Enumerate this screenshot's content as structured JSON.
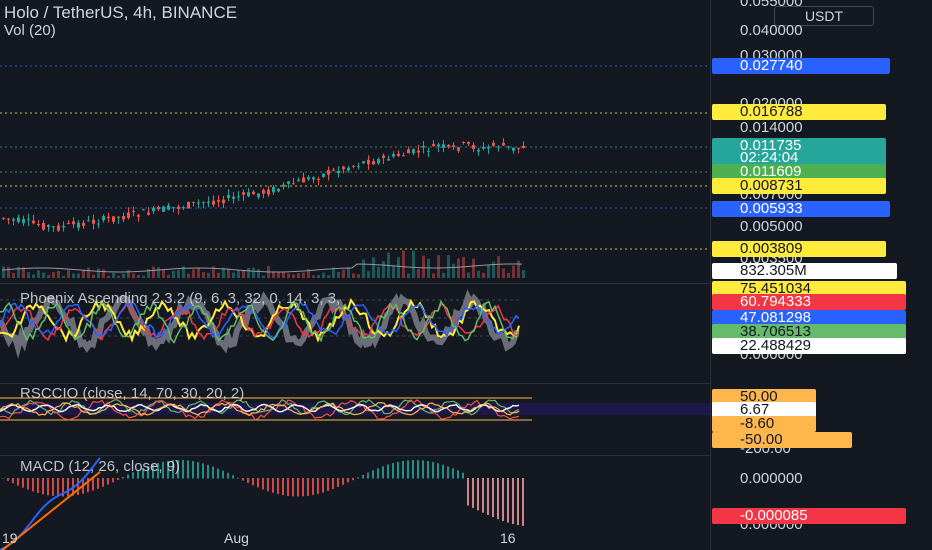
{
  "header": {
    "title": "Holo / TetherUS, 4h, BINANCE",
    "volume_label": "Vol (20)",
    "currency": "USDT"
  },
  "price_axis": {
    "ticks": [
      "0.055000",
      "0.040000",
      "0.030000",
      "0.020000",
      "0.014000",
      "0.007000",
      "0.005000",
      "0.003500"
    ],
    "labels": [
      {
        "text": "0.027740",
        "bg": "#2962ff",
        "fg": "#ffffff"
      },
      {
        "text": "0.016788",
        "bg": "#ffeb3b",
        "fg": "#131722"
      },
      {
        "text": "0.011735",
        "bg": "#26a69a",
        "fg": "#ffffff"
      },
      {
        "text": "02:24:04",
        "bg": "#26a69a",
        "fg": "#ffffff"
      },
      {
        "text": "0.011609",
        "bg": "#4caf50",
        "fg": "#ffffff"
      },
      {
        "text": "0.008731",
        "bg": "#ffeb3b",
        "fg": "#131722"
      },
      {
        "text": "0.005933",
        "bg": "#2962ff",
        "fg": "#ffffff"
      },
      {
        "text": "0.003809",
        "bg": "#ffeb3b",
        "fg": "#131722"
      },
      {
        "text": "832.305M",
        "bg": "#ffffff",
        "fg": "#131722"
      }
    ]
  },
  "phoenix": {
    "title": "Phoenix Ascending 2.3.2 (9, 6, 3, 32, 0, 14, 3, 3,",
    "labels": [
      {
        "text": "75.451034",
        "bg": "#ffeb3b",
        "fg": "#131722"
      },
      {
        "text": "60.794333",
        "bg": "#f23645",
        "fg": "#ffffff"
      },
      {
        "text": "47.081298",
        "bg": "#2962ff",
        "fg": "#ffffff"
      },
      {
        "text": "38.706513",
        "bg": "#66bb6a",
        "fg": "#131722"
      },
      {
        "text": "22.488429",
        "bg": "#ffffff",
        "fg": "#131722"
      }
    ],
    "tick": "0.000000"
  },
  "rsccio": {
    "title": "RSCCIO (close, 14, 70, 30, 20, 2)",
    "labels": [
      {
        "text": "50.00",
        "bg": "#ffb74d",
        "fg": "#131722"
      },
      {
        "text": "6.67",
        "bg": "#ffffff",
        "fg": "#131722"
      },
      {
        "text": "-8.60",
        "bg": "#ffb74d",
        "fg": "#131722"
      },
      {
        "text": "-50.00",
        "bg": "#ffb74d",
        "fg": "#131722"
      }
    ],
    "tick": "-200.00"
  },
  "macd": {
    "title": "MACD (12, 26, close, 9)",
    "ticks": [
      "0.000000",
      "-0.000085",
      "0.000000"
    ],
    "label": {
      "text": "-0.000085",
      "bg": "#f23645",
      "fg": "#ffffff"
    }
  },
  "time_axis": [
    "19",
    "Aug",
    "16"
  ]
}
